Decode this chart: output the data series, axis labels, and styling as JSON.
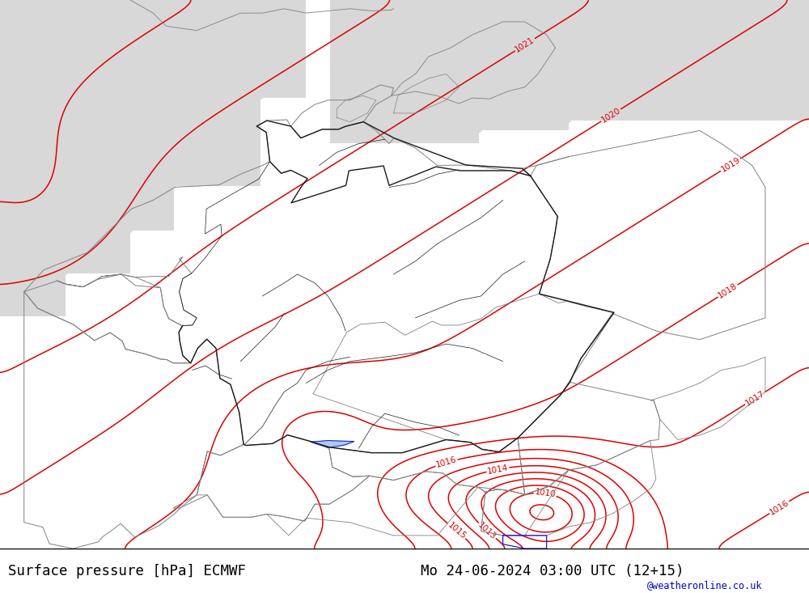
{
  "title_left": "Surface pressure [hPa] ECMWF",
  "title_right": "Mo 24-06-2024 03:00 UTC (12+15)",
  "watermark": "@weatheronline.co.uk",
  "land_color_green": "#b5d98a",
  "land_color_gray": "#c8c8c8",
  "sea_color": "#d8d8d8",
  "contour_color": "#dd0000",
  "border_color_dark": "#1a1a1a",
  "border_color_gray": "#808080",
  "blue_color": "#0000dd",
  "black_color": "#000000",
  "label_fontsize": 8,
  "title_fontsize": 12.5,
  "watermark_color": "#0000cc",
  "fig_width": 10.0,
  "fig_height": 7.33,
  "lon_min": 2.0,
  "lon_max": 20.5,
  "lat_min": 45.2,
  "lat_max": 57.8
}
